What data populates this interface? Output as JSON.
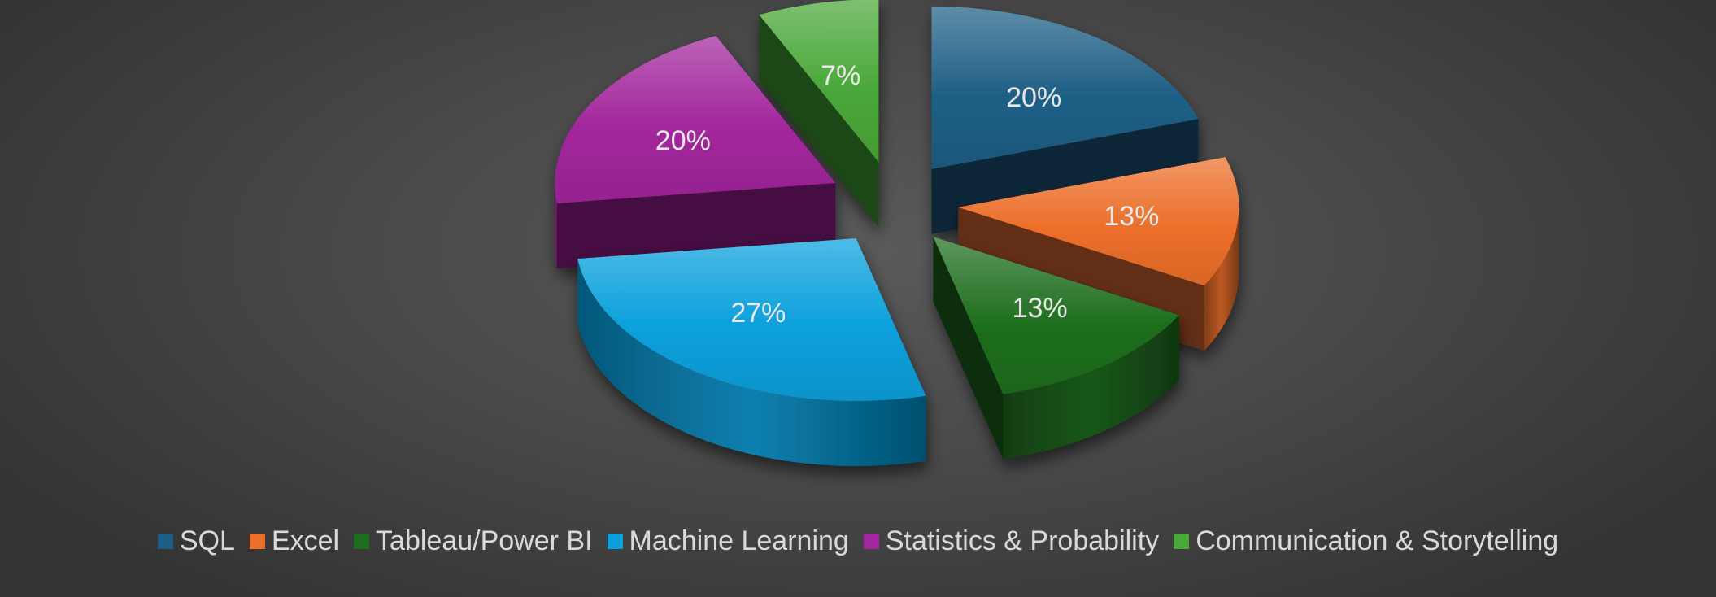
{
  "chart_data": {
    "type": "pie",
    "title": "",
    "categories": [
      "SQL",
      "Excel",
      "Tableau/Power BI",
      "Machine Learning",
      "Statistics & Probability",
      "Communication & Storytelling"
    ],
    "values": [
      20,
      13,
      13,
      27,
      20,
      7
    ],
    "value_labels": [
      "20%",
      "13%",
      "13%",
      "27%",
      "20%",
      "7%"
    ],
    "colors": [
      "#1f5f86",
      "#ec6f2a",
      "#1f6e1f",
      "#0aa0dc",
      "#a2269c",
      "#4aa73a"
    ],
    "legend_position": "bottom",
    "style": "3d-exploded"
  }
}
